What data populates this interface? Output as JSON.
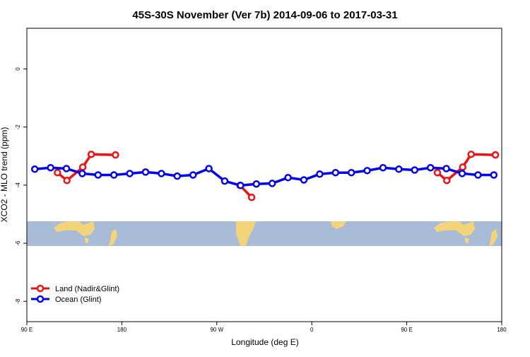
{
  "chart_data": {
    "type": "line",
    "title": "45S-30S November (Ver 7b)   2014-09-06 to 2017-03-31",
    "x_label": "Longitude (deg E)",
    "y_label": "XCO2 - MLO trend (ppm)",
    "xlim": [
      90,
      540
    ],
    "ylim": [
      -8.7,
      1.4
    ],
    "xticks": [
      {
        "value": 90,
        "label": "90 E"
      },
      180,
      {
        "value": 270,
        "label": "90 W"
      },
      {
        "value": 360,
        "label": "0"
      },
      {
        "value": 450,
        "label": "90 E"
      },
      {
        "value": 540,
        "label": "180"
      }
    ],
    "yticks": [
      0,
      -2,
      -4,
      -6,
      -8
    ],
    "legend": "bottom-left",
    "series": [
      {
        "name": "Land (Nadir&Glint)",
        "color": "#ee1111",
        "x": [
          119,
          128,
          143,
          151,
          174,
          null,
          292,
          303,
          null,
          479,
          488,
          503,
          511,
          534
        ],
        "values": [
          -3.57,
          -3.84,
          -3.38,
          -2.94,
          -2.96,
          null,
          -4.01,
          -4.42,
          null,
          -3.57,
          -3.84,
          -3.38,
          -2.94,
          -2.96
        ]
      },
      {
        "name": "Ocean (Glint)",
        "color": "#0000ee",
        "x": [
          97.5,
          112.5,
          127.5,
          142.5,
          157.5,
          172.5,
          187.5,
          202.5,
          217.5,
          232.5,
          247.5,
          262.5,
          277.5,
          292.5,
          307.5,
          322.5,
          337.5,
          352.5,
          367.5,
          382.5,
          397.5,
          412.5,
          427.5,
          442.5,
          457.5,
          472.5,
          487.5,
          502.5,
          517.5,
          532.5
        ],
        "values": [
          -3.45,
          -3.4,
          -3.43,
          -3.6,
          -3.65,
          -3.65,
          -3.6,
          -3.55,
          -3.6,
          -3.69,
          -3.65,
          -3.43,
          -3.86,
          -4.01,
          -3.96,
          -3.94,
          -3.74,
          -3.82,
          -3.62,
          -3.57,
          -3.57,
          -3.5,
          -3.4,
          -3.45,
          -3.48,
          -3.4,
          -3.43,
          -3.6,
          -3.65,
          -3.65
        ]
      }
    ]
  }
}
